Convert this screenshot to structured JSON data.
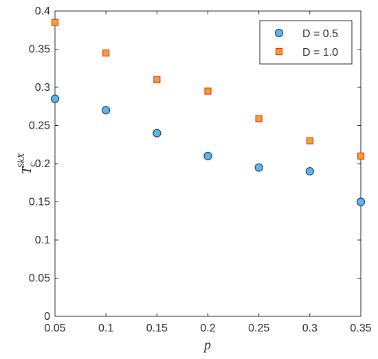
{
  "chart_data": {
    "type": "scatter",
    "xlabel": "p",
    "ylabel": {
      "base": "T",
      "sub": "c",
      "sup": "SkX"
    },
    "xlim": [
      0.05,
      0.35
    ],
    "ylim": [
      0,
      0.4
    ],
    "x_ticks": [
      "0.05",
      "0.1",
      "0.15",
      "0.2",
      "0.25",
      "0.3",
      "0.35"
    ],
    "y_ticks": [
      "0",
      "0.05",
      "0.1",
      "0.15",
      "0.2",
      "0.25",
      "0.3",
      "0.35",
      "0.4"
    ],
    "grid": false,
    "legend_position": "top-right",
    "series": [
      {
        "name": "D = 0.5",
        "marker": "circle",
        "fill": "#5BB8E8",
        "edge": "#1F3A6B",
        "x": [
          0.05,
          0.1,
          0.15,
          0.2,
          0.25,
          0.3,
          0.35
        ],
        "y": [
          0.285,
          0.27,
          0.24,
          0.21,
          0.195,
          0.19,
          0.15
        ]
      },
      {
        "name": "D = 1.0",
        "marker": "square",
        "fill": "#F2A12E",
        "edge": "#E8341C",
        "x": [
          0.05,
          0.1,
          0.15,
          0.2,
          0.25,
          0.3,
          0.35
        ],
        "y": [
          0.385,
          0.345,
          0.31,
          0.295,
          0.259,
          0.23,
          0.21
        ]
      }
    ]
  }
}
